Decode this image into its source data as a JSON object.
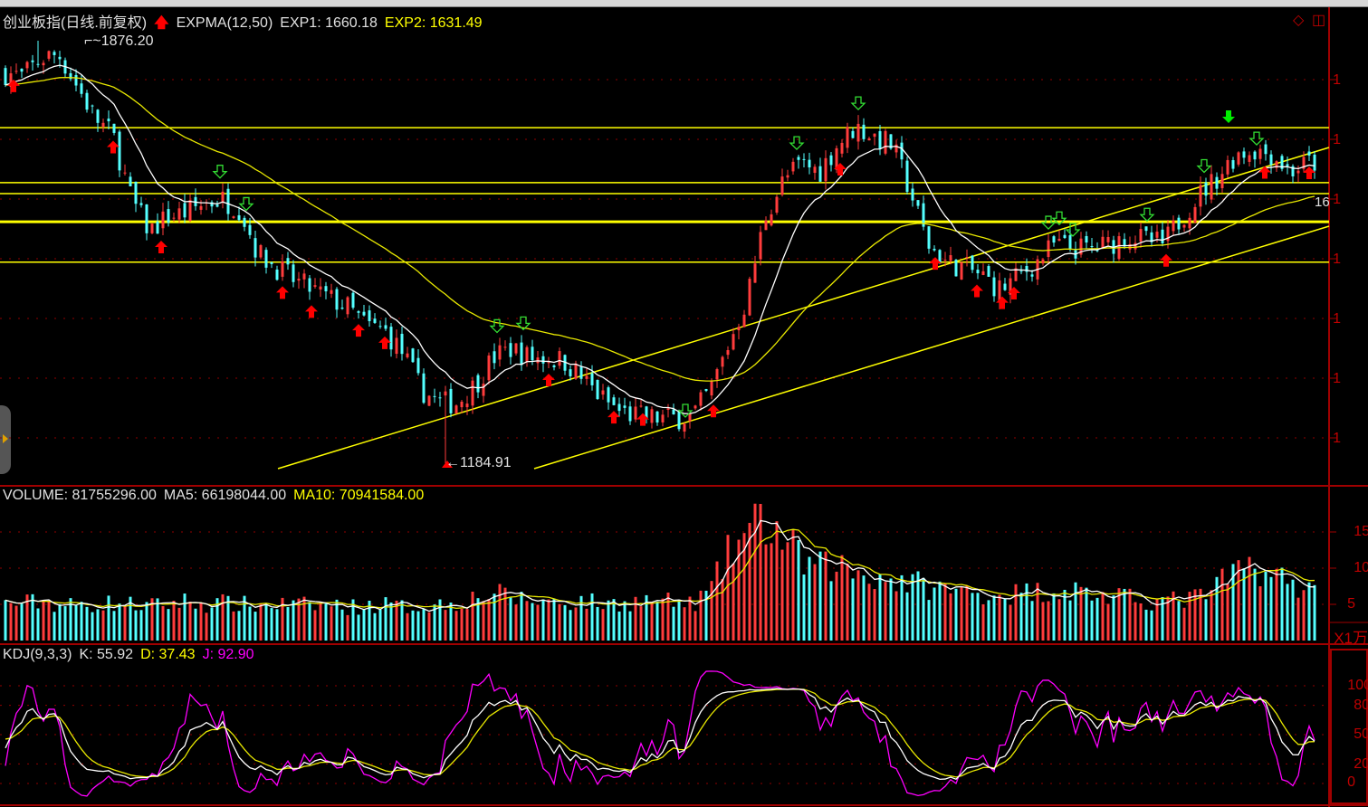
{
  "main": {
    "title": "创业板指(日线.前复权)",
    "indicator": "EXPMA(12,50)",
    "exp1": "EXP1: 1660.18",
    "exp2": "EXP2: 1631.49",
    "high_label": "1876.20",
    "low_label": "1184.91",
    "last_label": "16",
    "axis_labels": [
      "1",
      "1",
      "1",
      "1",
      "1",
      "1",
      "1"
    ]
  },
  "volume": {
    "label": "VOLUME: 81755296.00",
    "ma5": "MA5: 66198044.00",
    "ma10": "MA10: 70941584.00",
    "axis_labels": [
      "15",
      "10",
      "5"
    ],
    "unit": "X1万"
  },
  "kdj": {
    "label": "KDJ(9,3,3)",
    "k": "K: 55.92",
    "d": "D: 37.43",
    "j": "J: 92.90",
    "axis_labels": [
      "100",
      "80",
      "50",
      "20",
      "0"
    ]
  },
  "colors": {
    "up": "#ff3c3c",
    "down": "#54ffff",
    "exp1": "#ffffff",
    "exp2": "#e8e800",
    "j": "#ff00ff",
    "axis": "#c00000",
    "level": "#ffff00"
  },
  "chart_data": {
    "type": "candlestick",
    "close_trend": [
      1824,
      1817,
      1847,
      1854,
      1802,
      1750,
      1720,
      1617,
      1565,
      1588,
      1595,
      1610,
      1617,
      1602,
      1528,
      1506,
      1484,
      1469,
      1454,
      1439,
      1410,
      1402,
      1365,
      1306,
      1284,
      1284,
      1314,
      1358,
      1373,
      1358,
      1358,
      1351,
      1321,
      1291,
      1269,
      1262,
      1259,
      1259,
      1262,
      1306,
      1380,
      1454,
      1588,
      1647,
      1676,
      1662,
      1706,
      1736,
      1720,
      1706,
      1632,
      1543,
      1514,
      1506,
      1491,
      1469,
      1491,
      1514,
      1543,
      1536,
      1536,
      1543,
      1558,
      1550,
      1543,
      1588,
      1625,
      1654,
      1691,
      1698,
      1691,
      1662,
      1676
    ],
    "volume_trend": [
      5,
      5.2,
      5.4,
      5,
      4.8,
      5,
      5.2,
      5,
      4.8,
      5,
      5.5,
      5,
      5.2,
      5,
      4.8,
      5,
      5,
      4.8,
      5,
      4.6,
      4.8,
      5,
      4.6,
      4.8,
      5,
      5.2,
      6,
      6.5,
      6,
      5.5,
      5.5,
      5.2,
      5.5,
      5,
      5.2,
      5.4,
      5.6,
      5.2,
      5,
      7,
      12,
      15,
      16.5,
      14,
      11,
      10,
      10.5,
      9.5,
      9,
      8.5,
      8,
      7.5,
      7,
      6.8,
      6.5,
      6.5,
      6.5,
      6.8,
      7,
      7,
      6.5,
      6,
      5.8,
      5.5,
      5.5,
      5.6,
      6,
      7.5,
      9.5,
      10.5,
      9,
      8,
      7
    ],
    "levels": [
      1734,
      1644,
      1626,
      1580,
      1514
    ],
    "price_high": 1876.2,
    "price_low": 1184.91,
    "kdj_ylim": [
      0,
      100
    ]
  }
}
